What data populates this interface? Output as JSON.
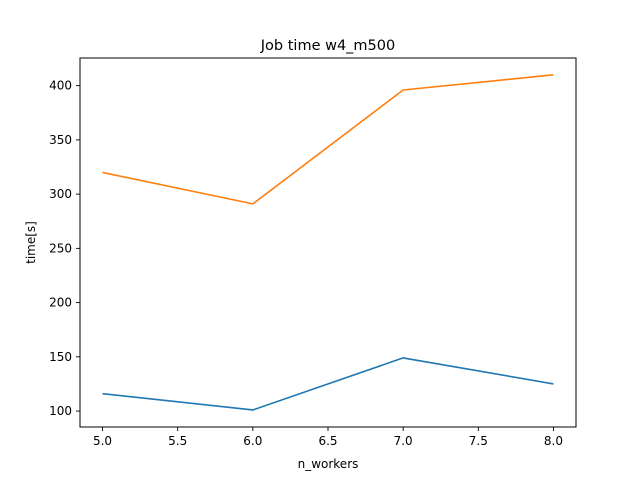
{
  "chart_data": {
    "type": "line",
    "title": "Job time w4_m500",
    "xlabel": "n_workers",
    "ylabel": "time[s]",
    "x": [
      5.0,
      6.0,
      7.0,
      8.0
    ],
    "series": [
      {
        "color": "#1f77b4",
        "values": [
          116,
          101,
          149,
          125
        ]
      },
      {
        "color": "#ff7f0e",
        "values": [
          320,
          291,
          396,
          410
        ]
      }
    ],
    "xlim": [
      4.85,
      8.15
    ],
    "ylim": [
      85.3,
      425.5
    ],
    "xticks": [
      5.0,
      5.5,
      6.0,
      6.5,
      7.0,
      7.5,
      8.0
    ],
    "xtick_labels": [
      "5.0",
      "5.5",
      "6.0",
      "6.5",
      "7.0",
      "7.5",
      "8.0"
    ],
    "yticks": [
      100,
      150,
      200,
      250,
      300,
      350,
      400
    ],
    "ytick_labels": [
      "100",
      "150",
      "200",
      "250",
      "300",
      "350",
      "400"
    ],
    "grid": false,
    "legend": "none"
  }
}
